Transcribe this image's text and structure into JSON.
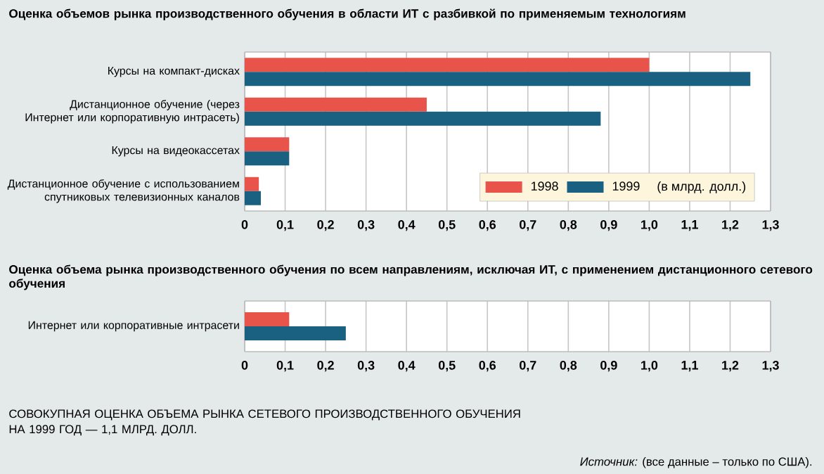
{
  "chart_data": [
    {
      "type": "bar",
      "orientation": "horizontal",
      "title": "Оценка объемов рынка производственного обучения в области ИТ с разбивкой по применяемым технологиям",
      "categories": [
        "Курсы на компакт-дисках",
        "Дистанционное обучение (через Интернет или корпоративную интрасеть)",
        "Курсы на видеокассетах",
        "Дистанционное обучение с использованием спутниковых телевизионных каналов"
      ],
      "series": [
        {
          "name": "1998",
          "color": "#e8534a",
          "values": [
            1.0,
            0.45,
            0.11,
            0.035
          ]
        },
        {
          "name": "1999",
          "color": "#1a6080",
          "values": [
            1.25,
            0.88,
            0.11,
            0.04
          ]
        }
      ],
      "legend_title": "(в млрд. долл.)",
      "legend": "bottom right",
      "grid": "x",
      "xlim": [
        0,
        1.3
      ],
      "xticks": [
        0,
        {
          "value": 0.1,
          "label": "0,1"
        },
        {
          "value": 0.2,
          "label": "0,2"
        },
        {
          "value": 0.3,
          "label": "0,3"
        },
        {
          "value": 0.4,
          "label": "0,4"
        },
        {
          "value": 0.5,
          "label": "0,5"
        },
        {
          "value": 0.6,
          "label": "0,6"
        },
        {
          "value": 0.7,
          "label": "0,7"
        },
        {
          "value": 0.8,
          "label": "0,8"
        },
        {
          "value": 0.9,
          "label": "0,9"
        },
        {
          "value": 1.0,
          "label": "1,0"
        },
        {
          "value": 1.1,
          "label": "1,1"
        },
        {
          "value": 1.2,
          "label": "1,2"
        },
        {
          "value": 1.3,
          "label": "1,3"
        }
      ]
    },
    {
      "type": "bar",
      "orientation": "horizontal",
      "title": "Оценка объема рынка производственного обучения по всем направлениям, исключая ИТ, с применением дистанционного сетевого обучения",
      "categories": [
        "Интернет или корпоративные интрасети"
      ],
      "series": [
        {
          "color": "#e8534a",
          "values": [
            0.11
          ]
        },
        {
          "color": "#1a6080",
          "values": [
            0.25
          ]
        }
      ],
      "grid": "x",
      "xlim": [
        0,
        1.3
      ],
      "xticks": [
        0,
        {
          "value": 0.1,
          "label": "0,1"
        },
        {
          "value": 0.2,
          "label": "0,2"
        },
        {
          "value": 0.3,
          "label": "0,3"
        },
        {
          "value": 0.4,
          "label": "0,4"
        },
        {
          "value": 0.5,
          "label": "0,5"
        },
        {
          "value": 0.6,
          "label": "0,6"
        },
        {
          "value": 0.7,
          "label": "0,7"
        },
        {
          "value": 0.8,
          "label": "0,8"
        },
        {
          "value": 0.9,
          "label": "0,9"
        },
        {
          "value": 1.0,
          "label": "1,0"
        },
        {
          "value": 1.1,
          "label": "1,1"
        },
        {
          "value": 1.2,
          "label": "1,2"
        },
        {
          "value": 1.3,
          "label": "1,3"
        }
      ],
      "annotations": [
        "СОВОКУПНАЯ ОЦЕНКА ОБЪЕМА РЫНКА СЕТЕВОГО ПРОИЗВОДСТВЕННОГО ОБУЧЕНИЯ НА 1999 ГОД — 1,1 МЛРД. ДОЛЛ.",
        "*Источник:* (все данные – только по США)."
      ]
    }
  ]
}
